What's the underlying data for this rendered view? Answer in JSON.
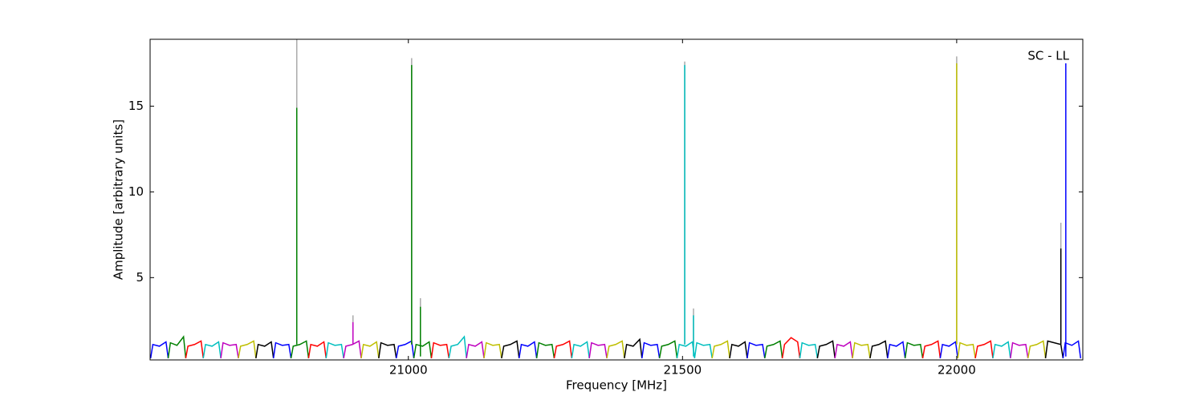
{
  "chart_data": {
    "type": "line",
    "annotation": "SC - LL",
    "xlabel": "Frequency [MHz]",
    "ylabel": "Amplitude [arbitrary units]",
    "xlim": [
      20529,
      22230
    ],
    "ylim": [
      0.2,
      18.9
    ],
    "xticks": [
      21000,
      21500,
      22000
    ],
    "yticks": [
      5,
      10,
      15
    ],
    "series": [
      {
        "color": "#0000ff",
        "x": [
          20530,
          20534,
          20546,
          20558,
          20562
        ],
        "values": [
          0.3,
          1.1,
          1.0,
          1.25,
          0.3
        ]
      },
      {
        "color": "#008000",
        "x": [
          20562,
          20566,
          20578,
          20590,
          20594
        ],
        "values": [
          0.3,
          1.2,
          1.05,
          1.55,
          0.3
        ]
      },
      {
        "color": "#ff0000",
        "x": [
          20594,
          20598,
          20610,
          20622,
          20626
        ],
        "values": [
          0.3,
          1.0,
          1.1,
          1.3,
          0.3
        ]
      },
      {
        "color": "#00bfbf",
        "x": [
          20626,
          20630,
          20642,
          20654,
          20658
        ],
        "values": [
          0.3,
          1.1,
          1.0,
          1.25,
          0.3
        ]
      },
      {
        "color": "#bf00bf",
        "x": [
          20658,
          20662,
          20674,
          20686,
          20690
        ],
        "values": [
          0.3,
          1.2,
          1.05,
          1.1,
          0.3
        ]
      },
      {
        "color": "#bfbf00",
        "x": [
          20690,
          20694,
          20706,
          20718,
          20722
        ],
        "values": [
          0.3,
          1.0,
          1.1,
          1.3,
          0.3
        ]
      },
      {
        "color": "#000000",
        "x": [
          20722,
          20726,
          20738,
          20750,
          20754
        ],
        "values": [
          0.3,
          1.1,
          1.0,
          1.25,
          0.3
        ]
      },
      {
        "color": "#0000ff",
        "x": [
          20754,
          20758,
          20770,
          20782,
          20786
        ],
        "values": [
          0.3,
          1.2,
          1.05,
          1.1,
          0.3
        ]
      },
      {
        "color": "#008000",
        "x": [
          20786,
          20790,
          20802,
          20814,
          20818
        ],
        "values": [
          0.3,
          1.0,
          1.1,
          1.3,
          0.3
        ]
      },
      {
        "color": "#ff0000",
        "x": [
          20818,
          20822,
          20834,
          20846,
          20850
        ],
        "values": [
          0.3,
          1.1,
          1.0,
          1.25,
          0.3
        ]
      },
      {
        "color": "#00bfbf",
        "x": [
          20850,
          20854,
          20866,
          20878,
          20882
        ],
        "values": [
          0.3,
          1.2,
          1.05,
          1.1,
          0.3
        ]
      },
      {
        "color": "#bf00bf",
        "x": [
          20882,
          20886,
          20898,
          20910,
          20914
        ],
        "values": [
          0.3,
          1.0,
          1.1,
          1.3,
          0.3
        ]
      },
      {
        "color": "#bfbf00",
        "x": [
          20914,
          20918,
          20930,
          20942,
          20946
        ],
        "values": [
          0.3,
          1.1,
          1.0,
          1.25,
          0.3
        ]
      },
      {
        "color": "#000000",
        "x": [
          20946,
          20950,
          20962,
          20974,
          20978
        ],
        "values": [
          0.3,
          1.2,
          1.05,
          1.1,
          0.3
        ]
      },
      {
        "color": "#0000ff",
        "x": [
          20978,
          20982,
          20994,
          21006,
          21010
        ],
        "values": [
          0.3,
          1.0,
          1.1,
          1.3,
          0.3
        ]
      },
      {
        "color": "#008000",
        "x": [
          21010,
          21014,
          21026,
          21038,
          21042
        ],
        "values": [
          0.3,
          1.1,
          1.0,
          1.25,
          0.3
        ]
      },
      {
        "color": "#ff0000",
        "x": [
          21042,
          21046,
          21058,
          21070,
          21074
        ],
        "values": [
          0.3,
          1.2,
          1.05,
          1.1,
          0.3
        ]
      },
      {
        "color": "#00bfbf",
        "x": [
          21074,
          21078,
          21090,
          21102,
          21106
        ],
        "values": [
          0.3,
          1.0,
          1.1,
          1.55,
          0.3
        ]
      },
      {
        "color": "#bf00bf",
        "x": [
          21106,
          21110,
          21122,
          21134,
          21138
        ],
        "values": [
          0.3,
          1.1,
          1.0,
          1.25,
          0.3
        ]
      },
      {
        "color": "#bfbf00",
        "x": [
          21138,
          21142,
          21154,
          21166,
          21170
        ],
        "values": [
          0.3,
          1.2,
          1.05,
          1.1,
          0.3
        ]
      },
      {
        "color": "#000000",
        "x": [
          21170,
          21174,
          21186,
          21198,
          21202
        ],
        "values": [
          0.3,
          1.0,
          1.1,
          1.3,
          0.3
        ]
      },
      {
        "color": "#0000ff",
        "x": [
          21202,
          21206,
          21218,
          21230,
          21234
        ],
        "values": [
          0.3,
          1.1,
          1.0,
          1.25,
          0.3
        ]
      },
      {
        "color": "#008000",
        "x": [
          21234,
          21238,
          21250,
          21262,
          21266
        ],
        "values": [
          0.3,
          1.2,
          1.05,
          1.1,
          0.3
        ]
      },
      {
        "color": "#ff0000",
        "x": [
          21266,
          21270,
          21282,
          21294,
          21298
        ],
        "values": [
          0.3,
          1.0,
          1.1,
          1.3,
          0.3
        ]
      },
      {
        "color": "#00bfbf",
        "x": [
          21298,
          21302,
          21314,
          21326,
          21330
        ],
        "values": [
          0.3,
          1.1,
          1.0,
          1.25,
          0.3
        ]
      },
      {
        "color": "#bf00bf",
        "x": [
          21330,
          21334,
          21346,
          21358,
          21362
        ],
        "values": [
          0.3,
          1.2,
          1.05,
          1.1,
          0.3
        ]
      },
      {
        "color": "#bfbf00",
        "x": [
          21362,
          21366,
          21378,
          21390,
          21394
        ],
        "values": [
          0.3,
          1.0,
          1.1,
          1.3,
          0.3
        ]
      },
      {
        "color": "#000000",
        "x": [
          21394,
          21398,
          21410,
          21422,
          21426
        ],
        "values": [
          0.3,
          1.1,
          1.0,
          1.4,
          0.3
        ]
      },
      {
        "color": "#0000ff",
        "x": [
          21426,
          21430,
          21442,
          21454,
          21458
        ],
        "values": [
          0.3,
          1.2,
          1.05,
          1.1,
          0.3
        ]
      },
      {
        "color": "#008000",
        "x": [
          21458,
          21462,
          21474,
          21486,
          21490
        ],
        "values": [
          0.3,
          1.0,
          1.1,
          1.3,
          0.3
        ]
      },
      {
        "color": "#00bfbf",
        "x": [
          21490,
          21494,
          21506,
          21518,
          21522
        ],
        "values": [
          0.3,
          1.1,
          1.0,
          1.25,
          0.3
        ]
      },
      {
        "color": "#00bfbf",
        "x": [
          21522,
          21526,
          21538,
          21550,
          21554
        ],
        "values": [
          0.3,
          1.2,
          1.05,
          1.1,
          0.3
        ]
      },
      {
        "color": "#bfbf00",
        "x": [
          21554,
          21558,
          21570,
          21582,
          21586
        ],
        "values": [
          0.3,
          1.0,
          1.1,
          1.3,
          0.3
        ]
      },
      {
        "color": "#000000",
        "x": [
          21586,
          21590,
          21602,
          21614,
          21618
        ],
        "values": [
          0.3,
          1.1,
          1.0,
          1.25,
          0.3
        ]
      },
      {
        "color": "#0000ff",
        "x": [
          21618,
          21622,
          21634,
          21646,
          21650
        ],
        "values": [
          0.3,
          1.2,
          1.05,
          1.1,
          0.3
        ]
      },
      {
        "color": "#008000",
        "x": [
          21650,
          21654,
          21666,
          21678,
          21682
        ],
        "values": [
          0.3,
          1.0,
          1.1,
          1.3,
          0.3
        ]
      },
      {
        "color": "#ff0000",
        "x": [
          21682,
          21686,
          21698,
          21710,
          21714
        ],
        "values": [
          0.3,
          1.1,
          1.5,
          1.25,
          0.3
        ]
      },
      {
        "color": "#00bfbf",
        "x": [
          21714,
          21718,
          21730,
          21742,
          21746
        ],
        "values": [
          0.3,
          1.2,
          1.05,
          1.1,
          0.3
        ]
      },
      {
        "color": "#000000",
        "x": [
          21746,
          21750,
          21762,
          21774,
          21778
        ],
        "values": [
          0.3,
          1.0,
          1.1,
          1.3,
          0.3
        ]
      },
      {
        "color": "#bf00bf",
        "x": [
          21778,
          21782,
          21794,
          21806,
          21810
        ],
        "values": [
          0.3,
          1.1,
          1.0,
          1.25,
          0.3
        ]
      },
      {
        "color": "#bfbf00",
        "x": [
          21810,
          21814,
          21826,
          21838,
          21842
        ],
        "values": [
          0.3,
          1.2,
          1.05,
          1.1,
          0.3
        ]
      },
      {
        "color": "#000000",
        "x": [
          21842,
          21846,
          21858,
          21870,
          21874
        ],
        "values": [
          0.3,
          1.0,
          1.1,
          1.3,
          0.3
        ]
      },
      {
        "color": "#0000ff",
        "x": [
          21874,
          21878,
          21890,
          21902,
          21906
        ],
        "values": [
          0.3,
          1.1,
          1.0,
          1.25,
          0.3
        ]
      },
      {
        "color": "#008000",
        "x": [
          21906,
          21910,
          21922,
          21934,
          21938
        ],
        "values": [
          0.3,
          1.2,
          1.05,
          1.1,
          0.3
        ]
      },
      {
        "color": "#ff0000",
        "x": [
          21938,
          21942,
          21954,
          21966,
          21970
        ],
        "values": [
          0.3,
          1.0,
          1.1,
          1.3,
          0.3
        ]
      },
      {
        "color": "#0000ff",
        "x": [
          21970,
          21974,
          21986,
          21998,
          22002
        ],
        "values": [
          0.3,
          1.1,
          1.0,
          1.25,
          0.3
        ]
      },
      {
        "color": "#bfbf00",
        "x": [
          22002,
          22006,
          22018,
          22030,
          22034
        ],
        "values": [
          0.3,
          1.2,
          1.05,
          1.1,
          0.3
        ]
      },
      {
        "color": "#ff0000",
        "x": [
          22034,
          22038,
          22050,
          22062,
          22066
        ],
        "values": [
          0.3,
          1.0,
          1.1,
          1.3,
          0.3
        ]
      },
      {
        "color": "#00bfbf",
        "x": [
          22066,
          22070,
          22082,
          22094,
          22098
        ],
        "values": [
          0.3,
          1.1,
          1.0,
          1.25,
          0.3
        ]
      },
      {
        "color": "#bf00bf",
        "x": [
          22098,
          22102,
          22114,
          22126,
          22130
        ],
        "values": [
          0.3,
          1.2,
          1.05,
          1.1,
          0.3
        ]
      },
      {
        "color": "#bfbf00",
        "x": [
          22130,
          22134,
          22146,
          22158,
          22162
        ],
        "values": [
          0.3,
          1.0,
          1.1,
          1.3,
          0.3
        ]
      },
      {
        "color": "#000000",
        "x": [
          22162,
          22166,
          22178,
          22190,
          22194
        ],
        "values": [
          0.3,
          1.3,
          1.2,
          1.1,
          0.3
        ]
      },
      {
        "color": "#0000ff",
        "x": [
          22194,
          22198,
          22210,
          22222,
          22226
        ],
        "values": [
          0.3,
          1.2,
          1.05,
          1.3,
          0.3
        ]
      },
      {
        "color": "#aaaaaa",
        "x": [
          20796.5,
          20796.5
        ],
        "values": [
          1.1,
          18.9
        ]
      },
      {
        "color": "#aaaaaa",
        "x": [
          20899,
          20899
        ],
        "values": [
          1.1,
          2.8
        ]
      },
      {
        "color": "#aaaaaa",
        "x": [
          21006,
          21006
        ],
        "values": [
          1.1,
          17.8
        ]
      },
      {
        "color": "#aaaaaa",
        "x": [
          21022,
          21022
        ],
        "values": [
          1.1,
          3.8
        ]
      },
      {
        "color": "#aaaaaa",
        "x": [
          21504,
          21504
        ],
        "values": [
          1.1,
          17.6
        ]
      },
      {
        "color": "#aaaaaa",
        "x": [
          21520,
          21520
        ],
        "values": [
          1.1,
          3.2
        ]
      },
      {
        "color": "#aaaaaa",
        "x": [
          22000,
          22000
        ],
        "values": [
          1.1,
          17.9
        ]
      },
      {
        "color": "#aaaaaa",
        "x": [
          22190,
          22190
        ],
        "values": [
          1.1,
          8.2
        ]
      },
      {
        "color": "#008000",
        "x": [
          20796.5,
          20796.5
        ],
        "values": [
          1.1,
          14.9
        ]
      },
      {
        "color": "#bf00bf",
        "x": [
          20899,
          20899
        ],
        "values": [
          1.1,
          2.4
        ]
      },
      {
        "color": "#008000",
        "x": [
          21006,
          21006
        ],
        "values": [
          1.1,
          17.4
        ]
      },
      {
        "color": "#008000",
        "x": [
          21022,
          21022
        ],
        "values": [
          0.4,
          3.3
        ]
      },
      {
        "color": "#00bfbf",
        "x": [
          21504,
          21504
        ],
        "values": [
          1.1,
          17.4
        ]
      },
      {
        "color": "#00bfbf",
        "x": [
          21520,
          21520
        ],
        "values": [
          0.4,
          2.8
        ]
      },
      {
        "color": "#bfbf00",
        "x": [
          22000,
          22000
        ],
        "values": [
          1.1,
          17.5
        ]
      },
      {
        "color": "#000000",
        "x": [
          22190,
          22190
        ],
        "values": [
          1.1,
          6.7
        ]
      },
      {
        "color": "#0000ff",
        "x": [
          22199,
          22199
        ],
        "values": [
          0.4,
          17.5
        ]
      }
    ]
  }
}
